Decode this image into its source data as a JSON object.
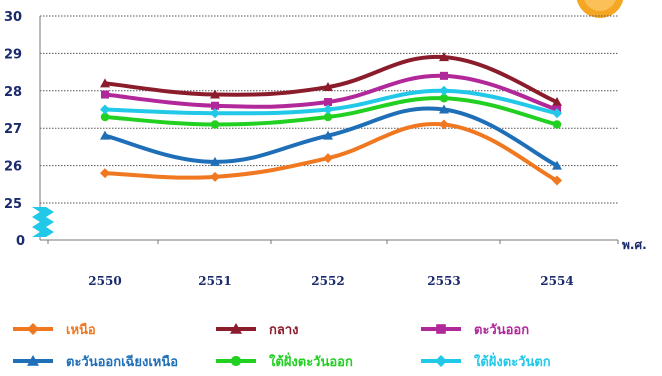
{
  "chart_data": {
    "type": "line",
    "categories": [
      "2550",
      "2551",
      "2552",
      "2553",
      "2554"
    ],
    "xlabel": "พ.ศ.",
    "ylabel": "",
    "title": "",
    "ylim": [
      25,
      30
    ],
    "axis_break": true,
    "y_bottom_label": "0",
    "y_ticks": [
      "25",
      "26",
      "27",
      "28",
      "29",
      "30"
    ],
    "grid": true,
    "legend_position": "bottom",
    "series": [
      {
        "name": "เหนือ",
        "color": "#f07820",
        "marker": "diamond",
        "values": [
          25.8,
          25.7,
          26.2,
          27.1,
          25.6
        ]
      },
      {
        "name": "กลาง",
        "color": "#8b1c2c",
        "marker": "triangle",
        "values": [
          28.2,
          27.9,
          28.1,
          28.9,
          27.7
        ]
      },
      {
        "name": "ตะวันออก",
        "color": "#b0289a",
        "marker": "square",
        "values": [
          27.9,
          27.6,
          27.7,
          28.4,
          27.5
        ]
      },
      {
        "name": "ตะวันออกเฉียงเหนือ",
        "color": "#1f6fb8",
        "marker": "triangle",
        "values": [
          26.8,
          26.1,
          26.8,
          27.5,
          26.0
        ]
      },
      {
        "name": "ใต้ฝั่งตะวันออก",
        "color": "#22d022",
        "marker": "circle",
        "values": [
          27.3,
          27.1,
          27.3,
          27.8,
          27.1
        ]
      },
      {
        "name": "ใต้ฝั่งตะวันตก",
        "color": "#22c8e8",
        "marker": "diamond",
        "values": [
          27.5,
          27.4,
          27.5,
          28.0,
          27.4
        ]
      }
    ]
  },
  "decor": {
    "corner_badge_color": "#f5a623",
    "break_symbol_color": "#22c8e8"
  }
}
